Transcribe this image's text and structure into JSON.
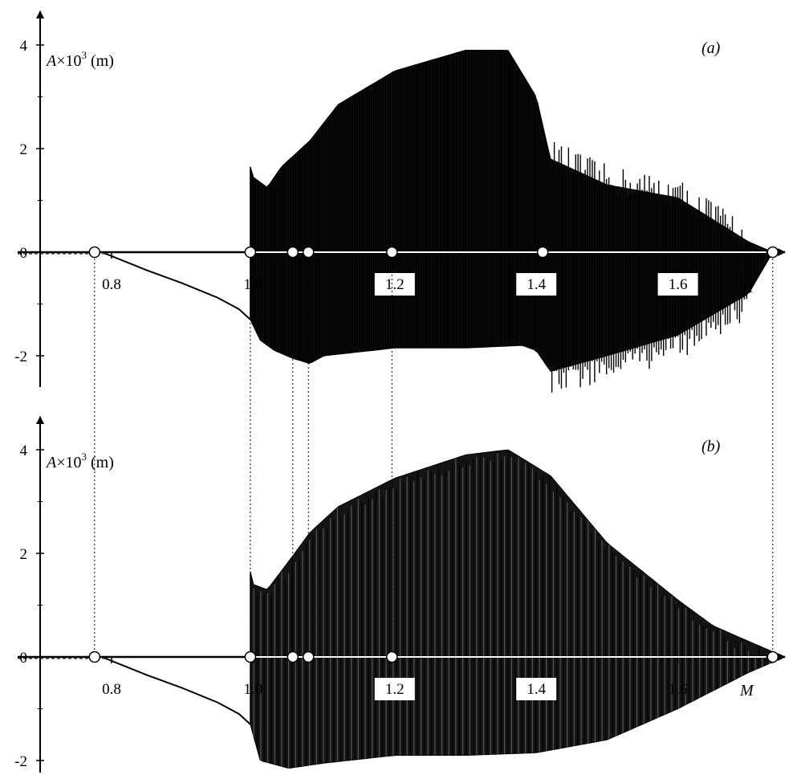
{
  "chart_data": [
    {
      "type": "area",
      "panel_label": "(a)",
      "ylabel_var": "A",
      "ylabel_rest": "×10",
      "ylabel_exp": "3",
      "ylabel_unit": " (m)",
      "xlabel": "M",
      "xlim": [
        0.7,
        1.75
      ],
      "ylim": [
        -2.5,
        4.3
      ],
      "y_ticks": [
        -2,
        0,
        2,
        4
      ],
      "x_ticks": [
        0.8,
        1.0,
        1.2,
        1.4,
        1.6
      ],
      "x_tick_labels": [
        "0.8",
        "1.0",
        "1.2",
        "1.4",
        "1.6"
      ],
      "boxed_ticks": [
        1.2,
        1.4,
        1.6
      ],
      "markers": [
        0.776,
        0.996,
        1.056,
        1.078,
        1.196,
        1.409,
        1.734
      ],
      "static_branch": {
        "x": [
          0.79,
          0.85,
          0.9,
          0.95,
          0.98,
          0.996
        ],
        "y": [
          -0.02,
          -0.35,
          -0.6,
          -0.88,
          -1.1,
          -1.3
        ]
      },
      "envelope_upper": {
        "x": [
          0.996,
          1.0,
          1.02,
          1.04,
          1.056,
          1.08,
          1.12,
          1.2,
          1.3,
          1.36,
          1.4,
          1.42,
          1.5,
          1.6,
          1.7,
          1.734
        ],
        "y": [
          1.65,
          1.45,
          1.25,
          1.65,
          1.85,
          2.15,
          2.85,
          3.5,
          3.9,
          3.9,
          3.0,
          1.8,
          1.3,
          1.05,
          0.2,
          0.0
        ]
      },
      "envelope_lower": {
        "x": [
          0.996,
          1.01,
          1.03,
          1.056,
          1.08,
          1.1,
          1.2,
          1.3,
          1.38,
          1.4,
          1.42,
          1.5,
          1.6,
          1.7,
          1.734
        ],
        "y": [
          -1.3,
          -1.7,
          -1.9,
          -2.05,
          -2.15,
          -2.0,
          -1.85,
          -1.85,
          -1.8,
          -1.9,
          -2.3,
          -2.0,
          -1.6,
          -0.8,
          0.0
        ]
      },
      "noise_range": [
        1.42,
        1.7
      ]
    },
    {
      "type": "area",
      "panel_label": "(b)",
      "ylabel_var": "A",
      "ylabel_rest": "×10",
      "ylabel_exp": "3",
      "ylabel_unit": " (m)",
      "xlabel": "M",
      "xlim": [
        0.7,
        1.75
      ],
      "ylim": [
        -2.5,
        4.3
      ],
      "y_ticks": [
        -2,
        0,
        2,
        4
      ],
      "x_ticks": [
        0.8,
        1.0,
        1.2,
        1.4,
        1.6
      ],
      "x_tick_labels": [
        "0.8",
        "1.0",
        "1.2",
        "1.4",
        "1.6"
      ],
      "boxed_ticks": [
        1.2,
        1.4
      ],
      "markers": [
        0.776,
        0.996,
        1.056,
        1.078,
        1.196,
        1.734
      ],
      "static_branch": {
        "x": [
          0.79,
          0.85,
          0.9,
          0.95,
          0.98,
          0.996
        ],
        "y": [
          -0.02,
          -0.35,
          -0.6,
          -0.88,
          -1.1,
          -1.3
        ]
      },
      "envelope_upper": {
        "x": [
          0.996,
          1.0,
          1.02,
          1.056,
          1.08,
          1.12,
          1.2,
          1.3,
          1.36,
          1.42,
          1.5,
          1.6,
          1.65,
          1.7,
          1.734
        ],
        "y": [
          1.65,
          1.4,
          1.3,
          1.95,
          2.4,
          2.9,
          3.45,
          3.9,
          4.0,
          3.5,
          2.2,
          1.1,
          0.6,
          0.3,
          0.1
        ]
      },
      "envelope_lower": {
        "x": [
          0.996,
          1.01,
          1.05,
          1.1,
          1.2,
          1.3,
          1.4,
          1.5,
          1.6,
          1.7,
          1.734
        ],
        "y": [
          -1.3,
          -2.0,
          -2.15,
          -2.05,
          -1.9,
          -1.9,
          -1.85,
          -1.6,
          -1.0,
          -0.3,
          -0.1
        ]
      },
      "noise_range": []
    }
  ]
}
